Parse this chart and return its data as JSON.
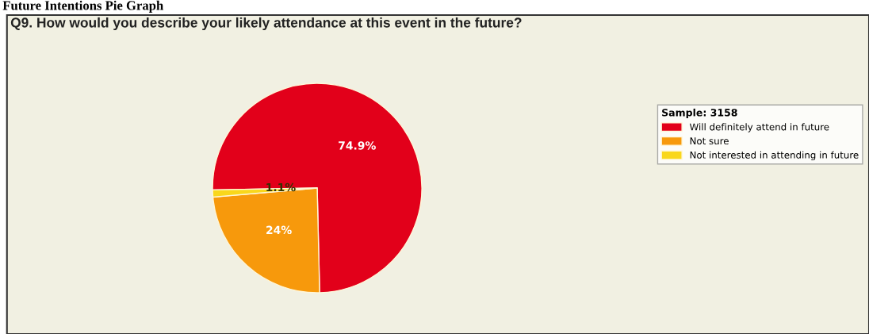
{
  "chart_data": {
    "type": "pie",
    "title": "Future Intentions Pie Graph",
    "subtitle": "Q9. How would you describe your likely attendance at this event in the future?",
    "legend_title": "Sample: 3158",
    "categories": [
      "Will definitely attend in future",
      "Not sure",
      "Not interested in attending in future"
    ],
    "values": [
      74.9,
      24,
      1.1
    ],
    "colors": [
      "#e2001a",
      "#f7990c",
      "#f9d71c"
    ],
    "value_labels": [
      "74.9%",
      "24%",
      "1.1%"
    ],
    "legend": "top right"
  }
}
